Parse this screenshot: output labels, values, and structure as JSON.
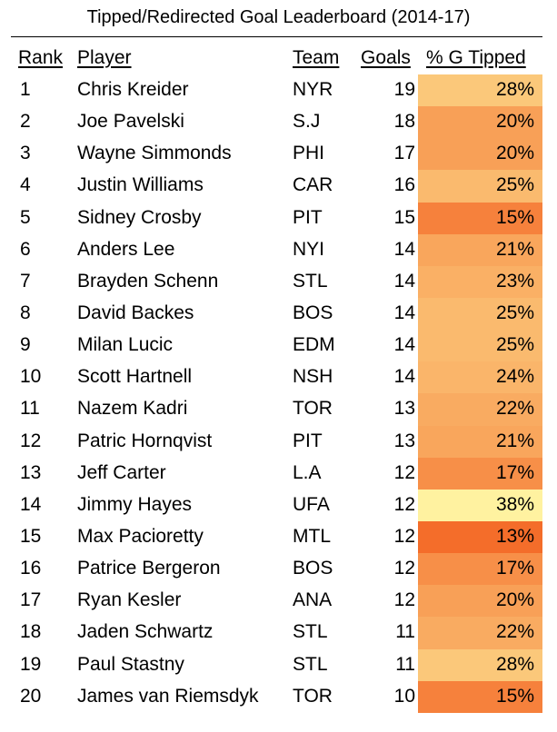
{
  "chart_data": {
    "type": "table",
    "title": "Tipped/Redirected Goal Leaderboard (2014-17)",
    "columns": [
      "Rank",
      "Player",
      "Team",
      "Goals",
      "% G Tipped"
    ],
    "rows": [
      {
        "rank": "1",
        "player": "Chris Kreider",
        "team": "NYR",
        "goals": "19",
        "pct": "28%",
        "pct_value": 28
      },
      {
        "rank": "2",
        "player": "Joe Pavelski",
        "team": "S.J",
        "goals": "18",
        "pct": "20%",
        "pct_value": 20
      },
      {
        "rank": "3",
        "player": "Wayne Simmonds",
        "team": "PHI",
        "goals": "17",
        "pct": "20%",
        "pct_value": 20
      },
      {
        "rank": "4",
        "player": "Justin Williams",
        "team": "CAR",
        "goals": "16",
        "pct": "25%",
        "pct_value": 25
      },
      {
        "rank": "5",
        "player": "Sidney Crosby",
        "team": "PIT",
        "goals": "15",
        "pct": "15%",
        "pct_value": 15
      },
      {
        "rank": "6",
        "player": "Anders Lee",
        "team": "NYI",
        "goals": "14",
        "pct": "21%",
        "pct_value": 21
      },
      {
        "rank": "7",
        "player": "Brayden Schenn",
        "team": "STL",
        "goals": "14",
        "pct": "23%",
        "pct_value": 23
      },
      {
        "rank": "8",
        "player": "David Backes",
        "team": "BOS",
        "goals": "14",
        "pct": "25%",
        "pct_value": 25
      },
      {
        "rank": "9",
        "player": "Milan Lucic",
        "team": "EDM",
        "goals": "14",
        "pct": "25%",
        "pct_value": 25
      },
      {
        "rank": "10",
        "player": "Scott Hartnell",
        "team": "NSH",
        "goals": "14",
        "pct": "24%",
        "pct_value": 24
      },
      {
        "rank": "11",
        "player": "Nazem Kadri",
        "team": "TOR",
        "goals": "13",
        "pct": "22%",
        "pct_value": 22
      },
      {
        "rank": "12",
        "player": "Patric Hornqvist",
        "team": "PIT",
        "goals": "13",
        "pct": "21%",
        "pct_value": 21
      },
      {
        "rank": "13",
        "player": "Jeff Carter",
        "team": "L.A",
        "goals": "12",
        "pct": "17%",
        "pct_value": 17
      },
      {
        "rank": "14",
        "player": "Jimmy Hayes",
        "team": "UFA",
        "goals": "12",
        "pct": "38%",
        "pct_value": 38
      },
      {
        "rank": "15",
        "player": "Max Pacioretty",
        "team": "MTL",
        "goals": "12",
        "pct": "13%",
        "pct_value": 13
      },
      {
        "rank": "16",
        "player": "Patrice Bergeron",
        "team": "BOS",
        "goals": "12",
        "pct": "17%",
        "pct_value": 17
      },
      {
        "rank": "17",
        "player": "Ryan Kesler",
        "team": "ANA",
        "goals": "12",
        "pct": "20%",
        "pct_value": 20
      },
      {
        "rank": "18",
        "player": "Jaden Schwartz",
        "team": "STL",
        "goals": "11",
        "pct": "22%",
        "pct_value": 22
      },
      {
        "rank": "19",
        "player": "Paul Stastny",
        "team": "STL",
        "goals": "11",
        "pct": "28%",
        "pct_value": 28
      },
      {
        "rank": "20",
        "player": "James van Riemsdyk",
        "team": "TOR",
        "goals": "10",
        "pct": "15%",
        "pct_value": 15
      }
    ],
    "color_scale": {
      "low": "#f46d2a",
      "high": "#fff2a0",
      "min": 13,
      "max": 38
    }
  }
}
